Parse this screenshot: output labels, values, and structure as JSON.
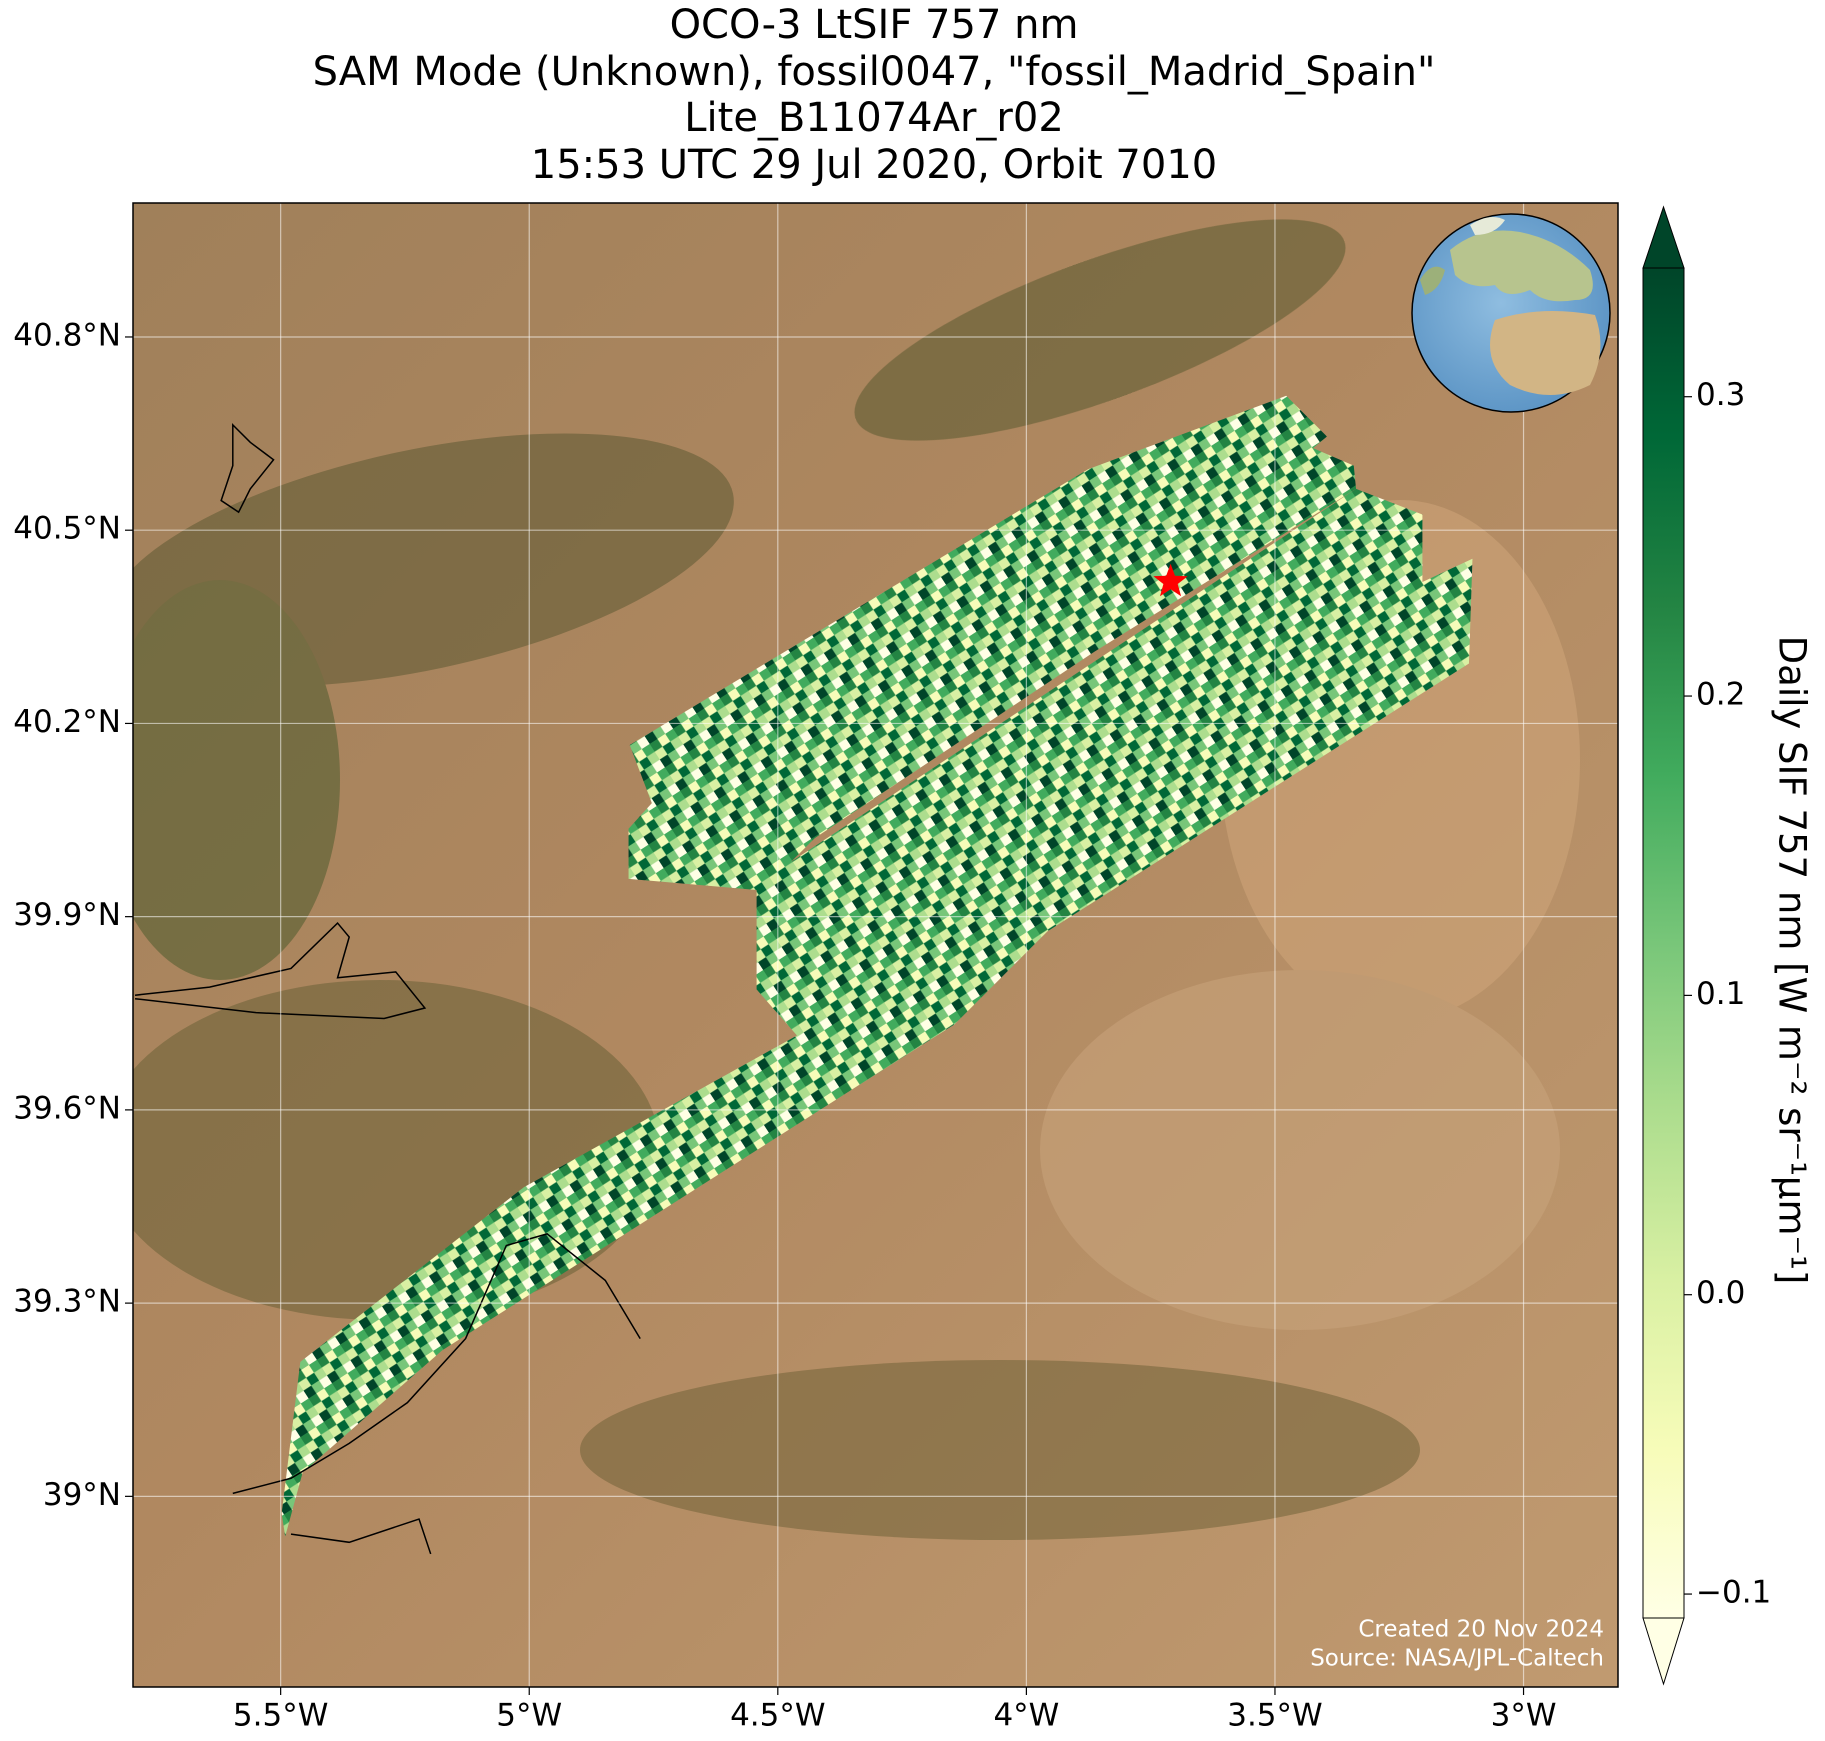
{
  "chart_data": {
    "type": "map",
    "title": [
      "OCO-3 LtSIF 757 nm",
      "SAM Mode (Unknown), fossil0047, \"fossil_Madrid_Spain\"",
      "Lite_B11074Ar_r02",
      "15:53 UTC 29 Jul 2020, Orbit 7010"
    ],
    "xlim": [
      -5.797,
      -2.81
    ],
    "xticks": [
      {
        "value": -5.5,
        "label": "5.5°W"
      },
      {
        "value": -5,
        "label": "5°W"
      },
      {
        "value": -4.5,
        "label": "4.5°W"
      },
      {
        "value": -4,
        "label": "4°W"
      },
      {
        "value": -3.5,
        "label": "3.5°W"
      },
      {
        "value": -3,
        "label": "3°W"
      }
    ],
    "ylim": [
      38.704,
      41.008
    ],
    "yticks": [
      {
        "value": 39.0,
        "label": "39°N"
      },
      {
        "value": 39.3,
        "label": "39.3°N"
      },
      {
        "value": 39.6,
        "label": "39.6°N"
      },
      {
        "value": 39.9,
        "label": "39.9°N"
      },
      {
        "value": 40.2,
        "label": "40.2°N"
      },
      {
        "value": 40.5,
        "label": "40.5°N"
      },
      {
        "value": 40.8,
        "label": "40.8°N"
      }
    ],
    "grid": true,
    "marker": {
      "x": -3.71,
      "y": 40.42,
      "color": "#ff0000"
    },
    "colorbar": {
      "label": "Daily SIF 757 nm [W m⁻² sr⁻¹μm⁻¹]",
      "lim": [
        -0.108,
        0.343
      ],
      "ticks": [
        {
          "value": -0.1,
          "label": "−0.1"
        },
        {
          "value": 0,
          "label": "0.0"
        },
        0.1,
        0.2,
        0.3
      ],
      "colors": [
        "#ffffe5",
        "#f7fcb9",
        "#d9f0a3",
        "#addd8e",
        "#78c679",
        "#41ab5d",
        "#238443",
        "#006837",
        "#004529"
      ],
      "extend": "both"
    },
    "footer": [
      "Created 20 Nov 2024",
      "Source: NASA/JPL-Caltech"
    ]
  }
}
